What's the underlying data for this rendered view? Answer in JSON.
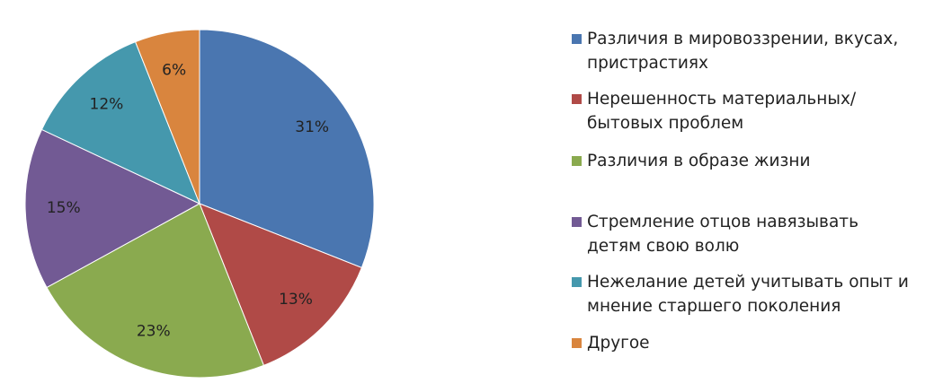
{
  "chart_data": {
    "type": "pie",
    "categories": [
      "Различия в мировоззрении, вкусах, пристрастиях",
      "Нерешенность материальных/бытовых проблем",
      "Различия в образе жизни",
      "Стремление отцов навязывать детям свою волю",
      "Нежелание детей учитывать опыт и мнение старшего поколения",
      "Другое"
    ],
    "values": [
      31,
      13,
      23,
      15,
      12,
      6
    ],
    "value_labels": [
      "31%",
      "13%",
      "23%",
      "15%",
      "12%",
      "6%"
    ],
    "colors": [
      "#4a76b0",
      "#b04a47",
      "#8aaa4f",
      "#725a94",
      "#4598ad",
      "#d9853e"
    ]
  }
}
